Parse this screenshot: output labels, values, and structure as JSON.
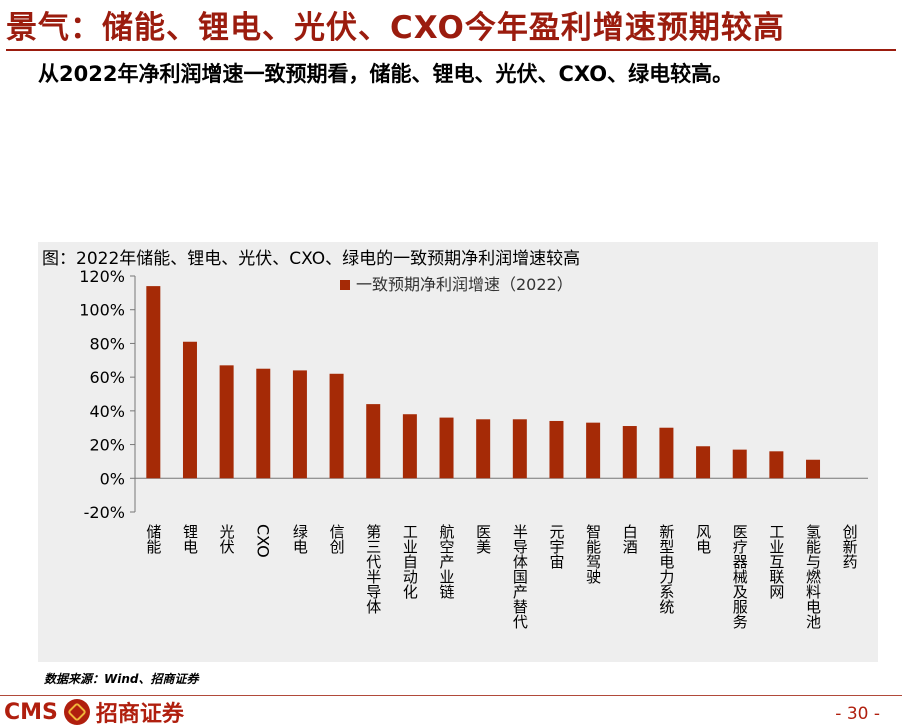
{
  "header": {
    "title": "景气：储能、锂电、光伏、CXO今年盈利增速预期较高",
    "subtitle": "从2022年净利润增速一致预期看，储能、锂电、光伏、CXO、绿电较高。"
  },
  "colors": {
    "accent": "#9b1c0e",
    "bar": "#a52a06",
    "panel": "#eeeeee"
  },
  "chart_data": {
    "type": "bar",
    "title": "图：2022年储能、锂电、光伏、CXO、绿电的一致预期净利润增速较高",
    "categories": [
      "储能",
      "锂电",
      "光伏",
      "CXO",
      "绿电",
      "信创",
      "第三代半导体",
      "工业自动化",
      "航空产业链",
      "医美",
      "半导体国产替代",
      "元宇宙",
      "智能驾驶",
      "白酒",
      "新型电力系统",
      "风电",
      "医疗器械及服务",
      "工业互联网",
      "氢能与燃料电池",
      "创新药"
    ],
    "series": [
      {
        "name": "一致预期净利润增速（2022）",
        "values": [
          114,
          81,
          67,
          65,
          64,
          62,
          44,
          38,
          36,
          35,
          35,
          34,
          33,
          31,
          30,
          19,
          17,
          16,
          11,
          0
        ]
      }
    ],
    "yticks": [
      "120%",
      "100%",
      "80%",
      "60%",
      "40%",
      "20%",
      "0%",
      "-20%"
    ],
    "ylim": [
      -20,
      120
    ],
    "legend_position": "top",
    "grid": false
  },
  "footer": {
    "source": "数据来源：Wind、招商证券",
    "logo_text": "CMS",
    "logo_name": "招商证券",
    "logo_icon": "cms-emblem-icon",
    "page_number": "- 30 -"
  }
}
